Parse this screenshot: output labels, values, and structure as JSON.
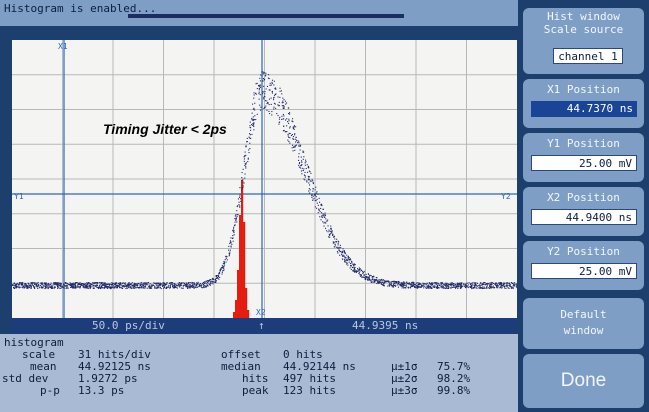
{
  "status": {
    "text": "Histogram is enabled..."
  },
  "scope": {
    "annotation": "Timing Jitter < 2ps",
    "markers": {
      "x1": "X1",
      "x2": "X2",
      "y1": "Y1",
      "y2": "Y2"
    },
    "colors": {
      "grid": "#b8b8b8",
      "marker": "#2c66c4",
      "histogram": "#e51c10",
      "trace": "#202a6a"
    }
  },
  "scalebar": {
    "timebase": "50.0 ps/div",
    "arrow": "↑",
    "position": "44.9395 ns"
  },
  "histogram": {
    "title": "histogram",
    "scale_label": "scale",
    "scale_value": "31 hits/div",
    "mean_label": "mean",
    "mean_value": "44.92125 ns",
    "stddev_label": "std dev",
    "stddev_value": "1.9272 ps",
    "pp_label": "p-p",
    "pp_value": "13.3 ps",
    "offset_label": "offset",
    "offset_value": "0 hits",
    "median_label": "median",
    "median_value": "44.92144 ns",
    "hits_label": "hits",
    "hits_value": "497 hits",
    "peak_label": "peak",
    "peak_value": "123 hits",
    "sigma1_label": "µ±1σ",
    "sigma1_value": "75.7%",
    "sigma2_label": "µ±2σ",
    "sigma2_value": "98.2%",
    "sigma3_label": "µ±3σ",
    "sigma3_value": "99.8%"
  },
  "side": {
    "window_title": "Hist window",
    "scale_source_label": "Scale source",
    "scale_source_value": "channel 1",
    "x1_label": "X1 Position",
    "x1_value": "44.7370 ns",
    "y1_label": "Y1 Position",
    "y1_value": "25.00 mV",
    "x2_label": "X2 Position",
    "x2_value": "44.9400 ns",
    "y2_label": "Y2 Position",
    "y2_value": "25.00 mV",
    "default_window_line1": "Default",
    "default_window_line2": "window",
    "done_label": "Done"
  }
}
